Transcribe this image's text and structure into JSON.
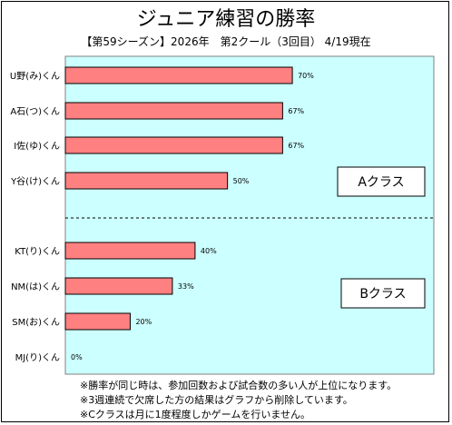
{
  "chart_data": {
    "type": "bar",
    "orientation": "horizontal",
    "title": "ジュニア練習の勝率",
    "subtitle": "【第59シーズン】2026年　第2クール（3回目）  4/19現在",
    "categories": [
      "U野(み)くん",
      "A石(つ)くん",
      "I佐(ゆ)くん",
      "Y谷(け)くん",
      "KT(り)くん",
      "NM(は)くん",
      "SM(お)くん",
      "MJ(り)くん"
    ],
    "values": [
      70,
      67,
      67,
      50,
      40,
      33,
      20,
      0
    ],
    "value_labels": [
      "70%",
      "67%",
      "67%",
      "50%",
      "40%",
      "33%",
      "20%",
      "0%"
    ],
    "xlim": [
      0,
      100
    ],
    "unit": "%",
    "groups": [
      {
        "label": "Aクラス",
        "members": [
          0,
          1,
          2,
          3
        ]
      },
      {
        "label": "Bクラス",
        "members": [
          4,
          5,
          6,
          7
        ]
      }
    ],
    "bar_color": "#ff8080",
    "plot_bg_color": "#ccffff",
    "grid": false
  },
  "notes": [
    "※勝率が同じ時は、参加回数および試合数の多い人が上位になります。",
    "※3週連続で欠席した方の結果はグラフから削除しています。",
    "※Cクラスは月に1度程度しかゲームを行いません。"
  ]
}
